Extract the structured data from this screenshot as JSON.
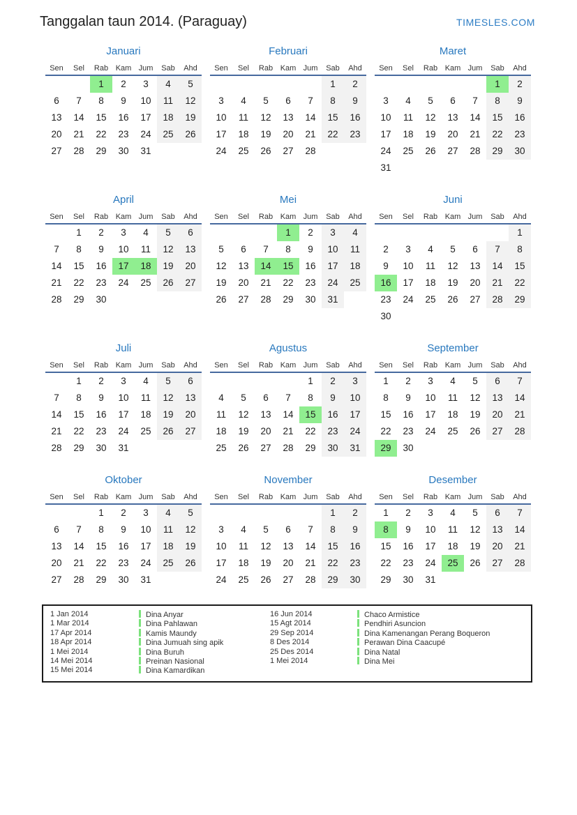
{
  "header": {
    "title": "Tanggalan taun 2014. (Paraguay)",
    "site": "TIMESLES.COM"
  },
  "day_headers": [
    "Sen",
    "Sel",
    "Rab",
    "Kam",
    "Jum",
    "Sab",
    "Ahd"
  ],
  "months": [
    {
      "name": "Januari",
      "highlights": [
        "1"
      ],
      "weeks": [
        [
          "",
          "",
          "1",
          "2",
          "3",
          "4",
          "5"
        ],
        [
          "6",
          "7",
          "8",
          "9",
          "10",
          "11",
          "12"
        ],
        [
          "13",
          "14",
          "15",
          "16",
          "17",
          "18",
          "19"
        ],
        [
          "20",
          "21",
          "22",
          "23",
          "24",
          "25",
          "26"
        ],
        [
          "27",
          "28",
          "29",
          "30",
          "31",
          "",
          ""
        ]
      ]
    },
    {
      "name": "Februari",
      "highlights": [],
      "weeks": [
        [
          "",
          "",
          "",
          "",
          "",
          "1",
          "2"
        ],
        [
          "3",
          "4",
          "5",
          "6",
          "7",
          "8",
          "9"
        ],
        [
          "10",
          "11",
          "12",
          "13",
          "14",
          "15",
          "16"
        ],
        [
          "17",
          "18",
          "19",
          "20",
          "21",
          "22",
          "23"
        ],
        [
          "24",
          "25",
          "26",
          "27",
          "28",
          "",
          ""
        ]
      ]
    },
    {
      "name": "Maret",
      "highlights": [
        "1"
      ],
      "weeks": [
        [
          "",
          "",
          "",
          "",
          "",
          "1",
          "2"
        ],
        [
          "3",
          "4",
          "5",
          "6",
          "7",
          "8",
          "9"
        ],
        [
          "10",
          "11",
          "12",
          "13",
          "14",
          "15",
          "16"
        ],
        [
          "17",
          "18",
          "19",
          "20",
          "21",
          "22",
          "23"
        ],
        [
          "24",
          "25",
          "26",
          "27",
          "28",
          "29",
          "30"
        ],
        [
          "31",
          "",
          "",
          "",
          "",
          "",
          ""
        ]
      ]
    },
    {
      "name": "April",
      "highlights": [
        "17",
        "18"
      ],
      "weeks": [
        [
          "",
          "1",
          "2",
          "3",
          "4",
          "5",
          "6"
        ],
        [
          "7",
          "8",
          "9",
          "10",
          "11",
          "12",
          "13"
        ],
        [
          "14",
          "15",
          "16",
          "17",
          "18",
          "19",
          "20"
        ],
        [
          "21",
          "22",
          "23",
          "24",
          "25",
          "26",
          "27"
        ],
        [
          "28",
          "29",
          "30",
          "",
          "",
          "",
          ""
        ]
      ]
    },
    {
      "name": "Mei",
      "highlights": [
        "1",
        "14",
        "15"
      ],
      "weeks": [
        [
          "",
          "",
          "",
          "1",
          "2",
          "3",
          "4"
        ],
        [
          "5",
          "6",
          "7",
          "8",
          "9",
          "10",
          "11"
        ],
        [
          "12",
          "13",
          "14",
          "15",
          "16",
          "17",
          "18"
        ],
        [
          "19",
          "20",
          "21",
          "22",
          "23",
          "24",
          "25"
        ],
        [
          "26",
          "27",
          "28",
          "29",
          "30",
          "31",
          ""
        ]
      ]
    },
    {
      "name": "Juni",
      "highlights": [
        "16"
      ],
      "weeks": [
        [
          "",
          "",
          "",
          "",
          "",
          "",
          "1"
        ],
        [
          "2",
          "3",
          "4",
          "5",
          "6",
          "7",
          "8"
        ],
        [
          "9",
          "10",
          "11",
          "12",
          "13",
          "14",
          "15"
        ],
        [
          "16",
          "17",
          "18",
          "19",
          "20",
          "21",
          "22"
        ],
        [
          "23",
          "24",
          "25",
          "26",
          "27",
          "28",
          "29"
        ],
        [
          "30",
          "",
          "",
          "",
          "",
          "",
          ""
        ]
      ]
    },
    {
      "name": "Juli",
      "highlights": [],
      "weeks": [
        [
          "",
          "1",
          "2",
          "3",
          "4",
          "5",
          "6"
        ],
        [
          "7",
          "8",
          "9",
          "10",
          "11",
          "12",
          "13"
        ],
        [
          "14",
          "15",
          "16",
          "17",
          "18",
          "19",
          "20"
        ],
        [
          "21",
          "22",
          "23",
          "24",
          "25",
          "26",
          "27"
        ],
        [
          "28",
          "29",
          "30",
          "31",
          "",
          "",
          ""
        ]
      ]
    },
    {
      "name": "Agustus",
      "highlights": [
        "15"
      ],
      "weeks": [
        [
          "",
          "",
          "",
          "",
          "1",
          "2",
          "3"
        ],
        [
          "4",
          "5",
          "6",
          "7",
          "8",
          "9",
          "10"
        ],
        [
          "11",
          "12",
          "13",
          "14",
          "15",
          "16",
          "17"
        ],
        [
          "18",
          "19",
          "20",
          "21",
          "22",
          "23",
          "24"
        ],
        [
          "25",
          "26",
          "27",
          "28",
          "29",
          "30",
          "31"
        ]
      ]
    },
    {
      "name": "September",
      "highlights": [
        "29"
      ],
      "weeks": [
        [
          "1",
          "2",
          "3",
          "4",
          "5",
          "6",
          "7"
        ],
        [
          "8",
          "9",
          "10",
          "11",
          "12",
          "13",
          "14"
        ],
        [
          "15",
          "16",
          "17",
          "18",
          "19",
          "20",
          "21"
        ],
        [
          "22",
          "23",
          "24",
          "25",
          "26",
          "27",
          "28"
        ],
        [
          "29",
          "30",
          "",
          "",
          "",
          "",
          ""
        ]
      ]
    },
    {
      "name": "Oktober",
      "highlights": [],
      "weeks": [
        [
          "",
          "",
          "1",
          "2",
          "3",
          "4",
          "5"
        ],
        [
          "6",
          "7",
          "8",
          "9",
          "10",
          "11",
          "12"
        ],
        [
          "13",
          "14",
          "15",
          "16",
          "17",
          "18",
          "19"
        ],
        [
          "20",
          "21",
          "22",
          "23",
          "24",
          "25",
          "26"
        ],
        [
          "27",
          "28",
          "29",
          "30",
          "31",
          "",
          ""
        ]
      ]
    },
    {
      "name": "November",
      "highlights": [],
      "weeks": [
        [
          "",
          "",
          "",
          "",
          "",
          "1",
          "2"
        ],
        [
          "3",
          "4",
          "5",
          "6",
          "7",
          "8",
          "9"
        ],
        [
          "10",
          "11",
          "12",
          "13",
          "14",
          "15",
          "16"
        ],
        [
          "17",
          "18",
          "19",
          "20",
          "21",
          "22",
          "23"
        ],
        [
          "24",
          "25",
          "26",
          "27",
          "28",
          "29",
          "30"
        ]
      ]
    },
    {
      "name": "Desember",
      "highlights": [
        "8",
        "25"
      ],
      "weeks": [
        [
          "1",
          "2",
          "3",
          "4",
          "5",
          "6",
          "7"
        ],
        [
          "8",
          "9",
          "10",
          "11",
          "12",
          "13",
          "14"
        ],
        [
          "15",
          "16",
          "17",
          "18",
          "19",
          "20",
          "21"
        ],
        [
          "22",
          "23",
          "24",
          "25",
          "26",
          "27",
          "28"
        ],
        [
          "29",
          "30",
          "31",
          "",
          "",
          "",
          ""
        ]
      ]
    }
  ],
  "holidays": {
    "group1": [
      {
        "date": "1 Jan 2014",
        "name": "Dina Anyar"
      },
      {
        "date": "1 Mar 2014",
        "name": "Dina Pahlawan"
      },
      {
        "date": "17 Apr 2014",
        "name": "Kamis Maundy"
      },
      {
        "date": "18 Apr 2014",
        "name": "Dina Jumuah sing apik"
      },
      {
        "date": "1 Mei 2014",
        "name": "Dina Buruh"
      },
      {
        "date": "14 Mei 2014",
        "name": "Preinan Nasional"
      },
      {
        "date": "15 Mei 2014",
        "name": "Dina Kamardikan"
      }
    ],
    "group2": [
      {
        "date": "16 Jun 2014",
        "name": "Chaco Armistice"
      },
      {
        "date": "15 Agt 2014",
        "name": "Pendhiri Asuncion"
      },
      {
        "date": "29 Sep 2014",
        "name": "Dina Kamenangan Perang Boqueron"
      },
      {
        "date": "8 Des 2014",
        "name": "Perawan Dina Caacupé"
      },
      {
        "date": "25 Des 2014",
        "name": "Dina Natal"
      },
      {
        "date": "1 Mei 2014",
        "name": "Dina Mei"
      }
    ]
  },
  "colors": {
    "title_blue": "#2878be",
    "brand_blue": "#2b7cc4",
    "rule_blue": "#46699e",
    "holiday_green": "#90ee90",
    "weekend_gray": "#f2f2f2",
    "legend_green": "#7ce27c"
  }
}
